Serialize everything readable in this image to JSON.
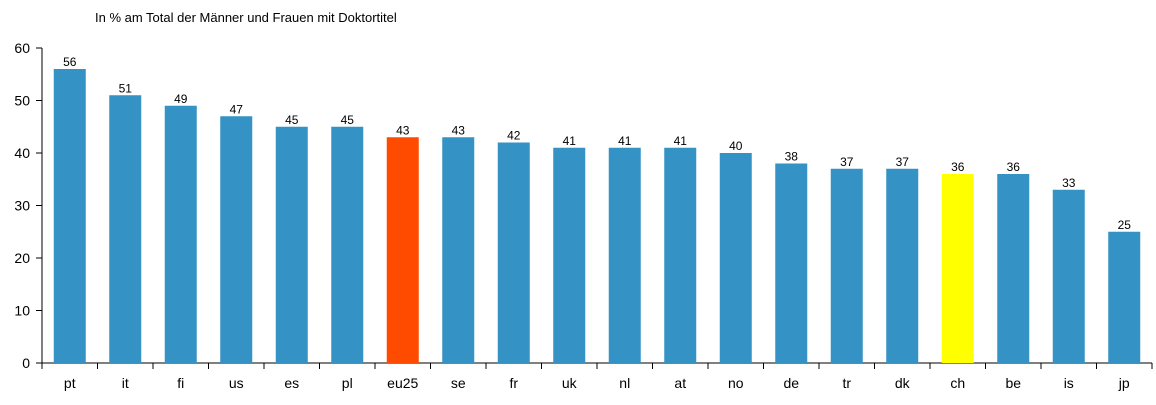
{
  "chart_data": {
    "type": "bar",
    "title": "In % am Total der Männer und Frauen mit Doktortitel",
    "categories": [
      "pt",
      "it",
      "fi",
      "us",
      "es",
      "pl",
      "eu25",
      "se",
      "fr",
      "uk",
      "nl",
      "at",
      "no",
      "de",
      "tr",
      "dk",
      "ch",
      "be",
      "is",
      "jp"
    ],
    "values": [
      56,
      51,
      49,
      47,
      45,
      45,
      43,
      43,
      42,
      41,
      41,
      41,
      40,
      38,
      37,
      37,
      36,
      36,
      33,
      25
    ],
    "colors": [
      "#3592c4",
      "#3592c4",
      "#3592c4",
      "#3592c4",
      "#3592c4",
      "#3592c4",
      "#ff4b00",
      "#3592c4",
      "#3592c4",
      "#3592c4",
      "#3592c4",
      "#3592c4",
      "#3592c4",
      "#3592c4",
      "#3592c4",
      "#3592c4",
      "#ffff00",
      "#3592c4",
      "#3592c4",
      "#3592c4"
    ],
    "ylim": [
      0,
      60
    ],
    "yticks": [
      0,
      10,
      20,
      30,
      40,
      50,
      60
    ],
    "grid": false
  }
}
